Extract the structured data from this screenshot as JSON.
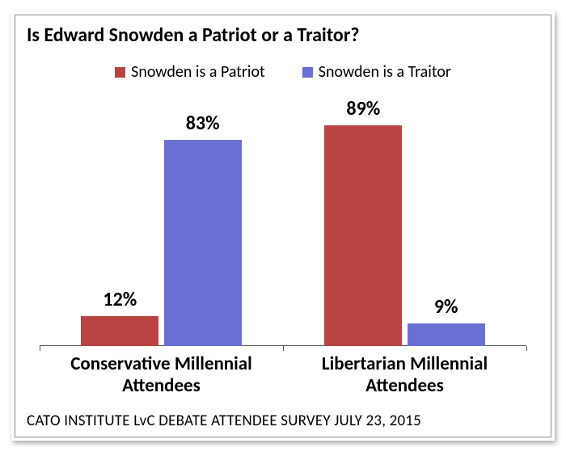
{
  "chart": {
    "type": "bar",
    "title": "Is Edward Snowden a Patriot or a Traitor?",
    "title_fontsize": 24,
    "title_fontweight": "bold",
    "legend": {
      "position": "top-center",
      "fontsize": 20,
      "items": [
        {
          "label": "Snowden is a Patriot",
          "color": "#b94441"
        },
        {
          "label": "Snowden is a Traitor",
          "color": "#6a6fd4"
        }
      ]
    },
    "ylim": [
      0,
      100
    ],
    "categories": [
      "Conservative Millennial Attendees",
      "Libertarian Millennial Attendees"
    ],
    "category_fontsize": 23,
    "category_fontweight": "bold",
    "series": [
      {
        "name": "Snowden is a Patriot",
        "color": "#b94441",
        "values": [
          12,
          89
        ],
        "value_labels": [
          "12%",
          "89%"
        ]
      },
      {
        "name": "Snowden is a Traitor",
        "color": "#6a6fd4",
        "values": [
          83,
          9
        ],
        "value_labels": [
          "83%",
          "9%"
        ]
      }
    ],
    "value_label_fontsize": 24,
    "value_label_fontweight": "bold",
    "bar_width_pct": 32,
    "bar_gap_pct": 2,
    "axis_color": "#555555",
    "background_color": "#ffffff",
    "border_color": "#888888",
    "source_line": "CATO INSTITUTE LvC DEBATE ATTENDEE SURVEY JULY 23, 2015",
    "source_fontsize": 19
  }
}
